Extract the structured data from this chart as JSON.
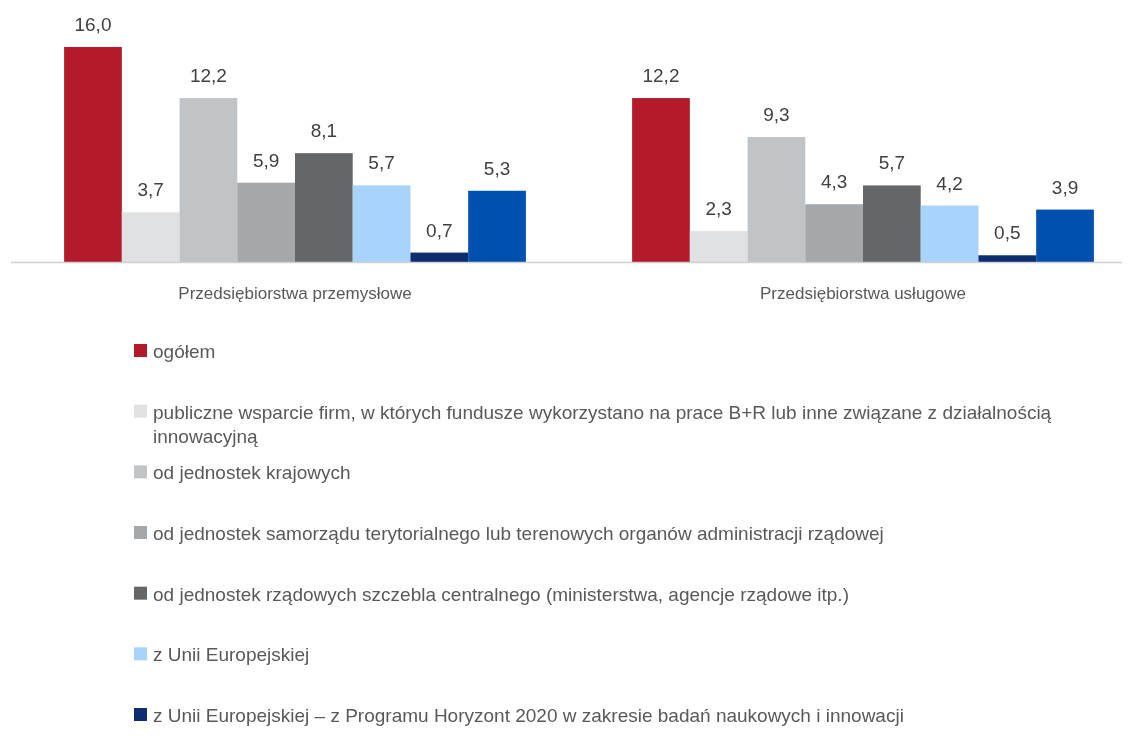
{
  "chart_data": {
    "type": "bar",
    "categories": [
      "Przedsiębiorstwa przemysłowe",
      "Przedsiębiorstwa usługowe"
    ],
    "series": [
      {
        "name": "ogółem",
        "color": "#b31b2b",
        "values": [
          16.0,
          12.2
        ],
        "value_labels": [
          "16,0",
          "12,2"
        ]
      },
      {
        "name": "publiczne wsparcie firm, w których fundusze wykorzystano na prace B+R lub inne związane z działalnością innowacyjną",
        "color": "#e0e1e3",
        "values": [
          3.7,
          2.3
        ],
        "value_labels": [
          "3,7",
          "2,3"
        ]
      },
      {
        "name": "od jednostek krajowych",
        "color": "#c1c4c7",
        "values": [
          12.2,
          9.3
        ],
        "value_labels": [
          "12,2",
          "9,3"
        ]
      },
      {
        "name": "od jednostek samorządu terytorialnego lub terenowych organów administracji rządowej",
        "color": "#a5a8ab",
        "values": [
          5.9,
          4.3
        ],
        "value_labels": [
          "5,9",
          "4,3"
        ]
      },
      {
        "name": "od jednostek rządowych szczebla centralnego (ministerstwa, agencje rządowe itp.)",
        "color": "#63676a",
        "values": [
          8.1,
          5.7
        ],
        "value_labels": [
          "8,1",
          "5,7"
        ]
      },
      {
        "name": "z Unii Europejskiej",
        "color": "#a8d4fc",
        "values": [
          5.7,
          4.2
        ],
        "value_labels": [
          "5,7",
          "4,2"
        ]
      },
      {
        "name": "z Unii Europejskiej – z Programu Horyzont 2020 w zakresie badań naukowych i innowacji",
        "color": "#0d2d6e",
        "values": [
          0.7,
          0.5
        ],
        "value_labels": [
          "0,7",
          "0,5"
        ]
      },
      {
        "color": "#0050b0",
        "values": [
          5.3,
          3.9
        ],
        "value_labels": [
          "5,3",
          "3,9"
        ]
      }
    ],
    "legend": "bottom"
  }
}
